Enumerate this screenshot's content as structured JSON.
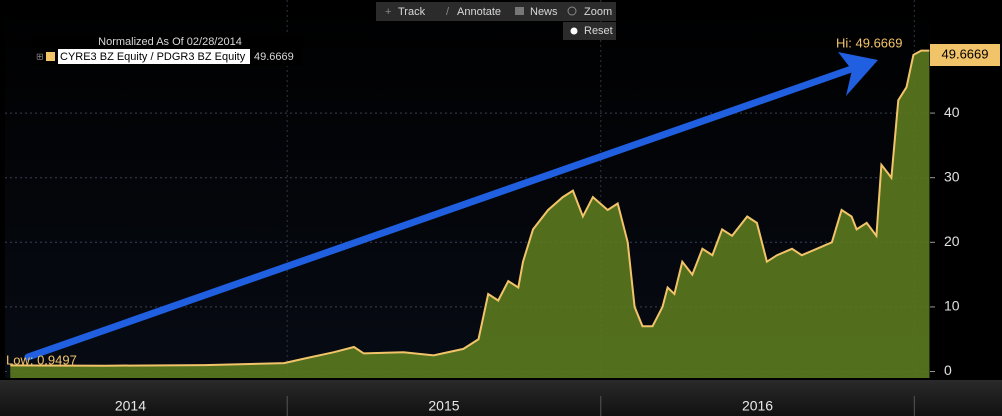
{
  "chart_data": {
    "type": "area",
    "toolbar": [
      "Track",
      "Annotate",
      "News",
      "Zoom"
    ],
    "reset": "Reset",
    "legend_title": "Normalized As Of 02/28/2014",
    "series": [
      {
        "name": "CYRE3 BZ Equity / PDGR3 BZ Equity",
        "color": "#f2c46a",
        "fill": "#5b7a1f",
        "x": [
          2014.117,
          2014.419,
          2014.737,
          2014.99,
          2015.054,
          2015.149,
          2015.213,
          2015.244,
          2015.371,
          2015.467,
          2015.562,
          2015.61,
          2015.641,
          2015.673,
          2015.705,
          2015.737,
          2015.752,
          2015.784,
          2015.832,
          2015.879,
          2015.911,
          2015.943,
          2015.975,
          2016.022,
          2016.054,
          2016.086,
          2016.108,
          2016.133,
          2016.165,
          2016.197,
          2016.213,
          2016.235,
          2016.26,
          2016.292,
          2016.324,
          2016.356,
          2016.387,
          2016.419,
          2016.467,
          2016.498,
          2016.53,
          2016.562,
          2016.61,
          2016.641,
          2016.689,
          2016.737,
          2016.768,
          2016.8,
          2016.816,
          2016.848,
          2016.879,
          2016.895,
          2016.927,
          2016.949,
          2016.975,
          2016.997,
          2017.022,
          2017.048
        ],
        "values": [
          0.9497,
          0.9,
          1.0,
          1.3,
          2.0,
          3.0,
          3.8,
          2.8,
          3.0,
          2.5,
          3.5,
          5,
          12,
          11,
          14,
          13,
          17,
          22,
          25,
          27,
          28,
          24,
          27,
          25,
          26,
          20,
          10,
          7,
          7,
          10,
          13,
          12,
          17,
          15,
          19,
          18,
          22,
          21,
          24,
          23,
          17,
          18,
          19,
          18,
          19,
          20,
          25,
          24,
          22,
          23,
          21,
          32,
          30,
          42,
          44,
          49,
          49.6669,
          49.6669
        ]
      }
    ],
    "annotations": [
      "Hi: 49.6669",
      "Low: 0.9497"
    ],
    "xlim": [
      2014.1,
      2017.05
    ],
    "xticks": [
      {
        "value": 2014.5,
        "label": "2014"
      },
      {
        "value": 2015.5,
        "label": "2015"
      },
      {
        "value": 2016.5,
        "label": "2016"
      }
    ],
    "ylim": [
      -1,
      57.5
    ],
    "yticks": [
      0,
      10,
      20,
      30,
      40
    ],
    "grid": true
  }
}
